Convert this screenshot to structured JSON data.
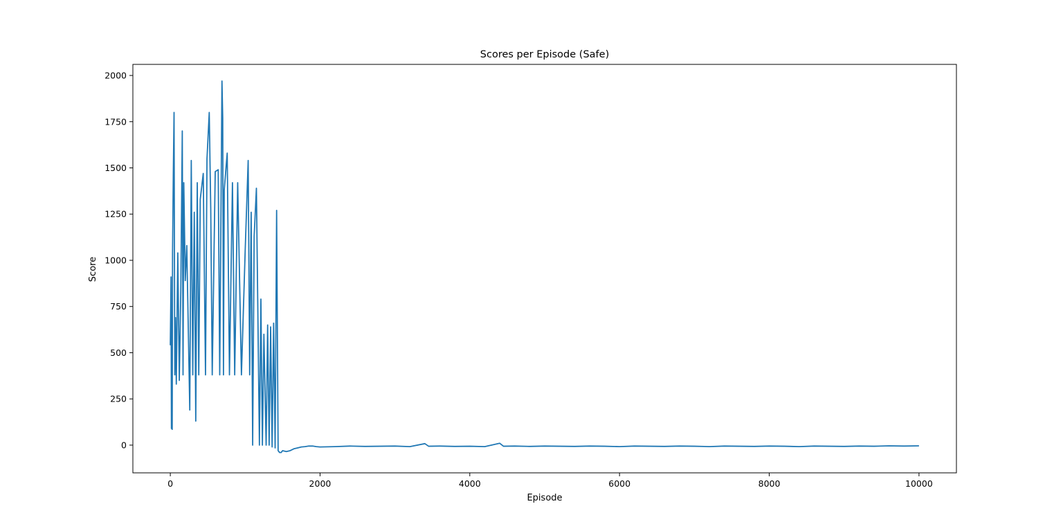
{
  "chart_data": {
    "type": "line",
    "title": "Scores per Episode (Safe)",
    "xlabel": "Episode",
    "ylabel": "Score",
    "xlim": [
      -500,
      10500
    ],
    "ylim": [
      -150,
      2060
    ],
    "xticks": [
      0,
      2000,
      4000,
      6000,
      8000,
      10000
    ],
    "xtick_labels": [
      "0",
      "2000",
      "4000",
      "6000",
      "8000",
      "10000"
    ],
    "yticks": [
      0,
      250,
      500,
      750,
      1000,
      1250,
      1500,
      1750,
      2000
    ],
    "ytick_labels": [
      "0",
      "250",
      "500",
      "750",
      "1000",
      "1250",
      "1500",
      "1750",
      "2000"
    ],
    "grid": false,
    "series": [
      {
        "color": "#1f77b4",
        "x": [
          0,
          10,
          15,
          20,
          25,
          30,
          40,
          50,
          60,
          70,
          80,
          100,
          120,
          140,
          160,
          170,
          180,
          200,
          220,
          260,
          280,
          300,
          320,
          340,
          360,
          380,
          400,
          440,
          470,
          490,
          520,
          540,
          560,
          600,
          640,
          660,
          690,
          700,
          710,
          720,
          760,
          790,
          830,
          860,
          900,
          950,
          1000,
          1040,
          1060,
          1080,
          1100,
          1120,
          1150,
          1190,
          1210,
          1230,
          1250,
          1280,
          1300,
          1320,
          1340,
          1360,
          1380,
          1400,
          1420,
          1440,
          1460,
          1480,
          1500,
          1550,
          1600,
          1650,
          1700,
          1750,
          1800,
          1850,
          1900,
          1950,
          2000,
          2200,
          2400,
          2600,
          2800,
          3000,
          3200,
          3400,
          3450,
          3600,
          3800,
          4000,
          4200,
          4400,
          4450,
          4600,
          4800,
          5000,
          5200,
          5400,
          5600,
          5800,
          6000,
          6200,
          6400,
          6600,
          6800,
          7000,
          7200,
          7400,
          7600,
          7800,
          8000,
          8200,
          8400,
          8600,
          8800,
          9000,
          9200,
          9400,
          9600,
          9800,
          10000
        ],
        "y": [
          540,
          910,
          90,
          620,
          85,
          1040,
          1460,
          1800,
          380,
          690,
          330,
          1040,
          350,
          830,
          1700,
          380,
          1420,
          890,
          1080,
          190,
          1540,
          380,
          1260,
          130,
          1420,
          380,
          1330,
          1470,
          380,
          1550,
          1800,
          1280,
          380,
          1480,
          1490,
          380,
          1970,
          1770,
          380,
          1380,
          1580,
          380,
          1420,
          380,
          1420,
          380,
          1050,
          1540,
          380,
          1260,
          0,
          1130,
          1390,
          0,
          790,
          0,
          600,
          0,
          650,
          0,
          640,
          -10,
          660,
          -15,
          1270,
          -30,
          -40,
          -40,
          -30,
          -35,
          -30,
          -20,
          -15,
          -10,
          -8,
          -5,
          -5,
          -8,
          -10,
          -8,
          -5,
          -7,
          -6,
          -5,
          -8,
          8,
          -6,
          -5,
          -7,
          -6,
          -8,
          10,
          -6,
          -5,
          -7,
          -5,
          -6,
          -7,
          -5,
          -6,
          -8,
          -5,
          -6,
          -7,
          -5,
          -6,
          -8,
          -5,
          -6,
          -7,
          -5,
          -6,
          -8,
          -5,
          -6,
          -7,
          -5,
          -6,
          -4,
          -5,
          -4
        ]
      }
    ]
  }
}
